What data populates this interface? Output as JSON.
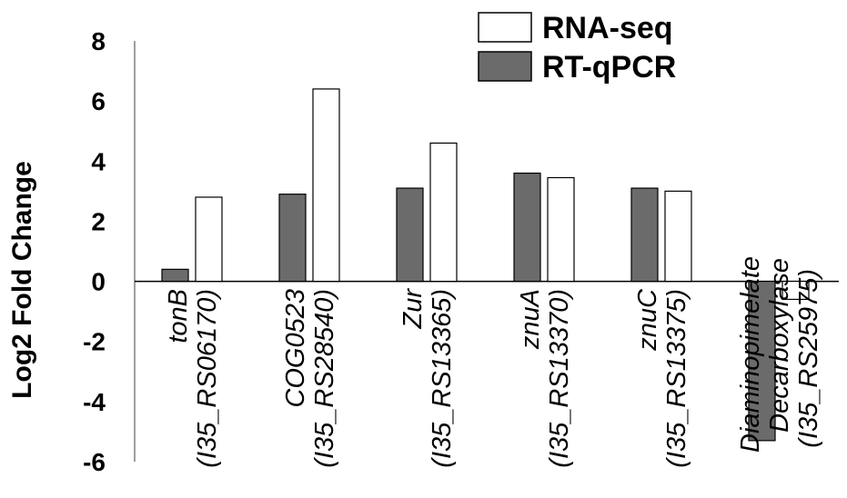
{
  "chart_data": {
    "type": "bar",
    "title": "",
    "xlabel": "",
    "ylabel": "Log2 Fold Change",
    "ylim": [
      -6,
      8
    ],
    "yticks": [
      8,
      6,
      4,
      2,
      0,
      -2,
      -4,
      -6
    ],
    "ytick_labels": [
      "8",
      "6",
      "4",
      "2",
      "0",
      "-2",
      "-4",
      "-6"
    ],
    "grid": false,
    "legend_position": "top-right",
    "categories": [
      [
        "tonB",
        "(I35_RS06170)"
      ],
      [
        "COG0523",
        "(I35_RS28540)"
      ],
      [
        "Zur",
        "(I35_RS13365)"
      ],
      [
        "znuA",
        "(I35_RS13370)"
      ],
      [
        "znuC",
        "(I35_RS13375)"
      ],
      [
        "Diaminopimelate",
        "Decarboxylase",
        "(I35_RS25975)"
      ]
    ],
    "series": [
      {
        "name": "RT-qPCR",
        "color": "#6b6b6b",
        "values": [
          0.4,
          2.9,
          3.1,
          3.6,
          3.1,
          -5.3
        ]
      },
      {
        "name": "RNA-seq",
        "color": "#ffffff",
        "values": [
          2.8,
          6.4,
          4.6,
          3.45,
          3.0,
          -0.6
        ]
      }
    ]
  }
}
